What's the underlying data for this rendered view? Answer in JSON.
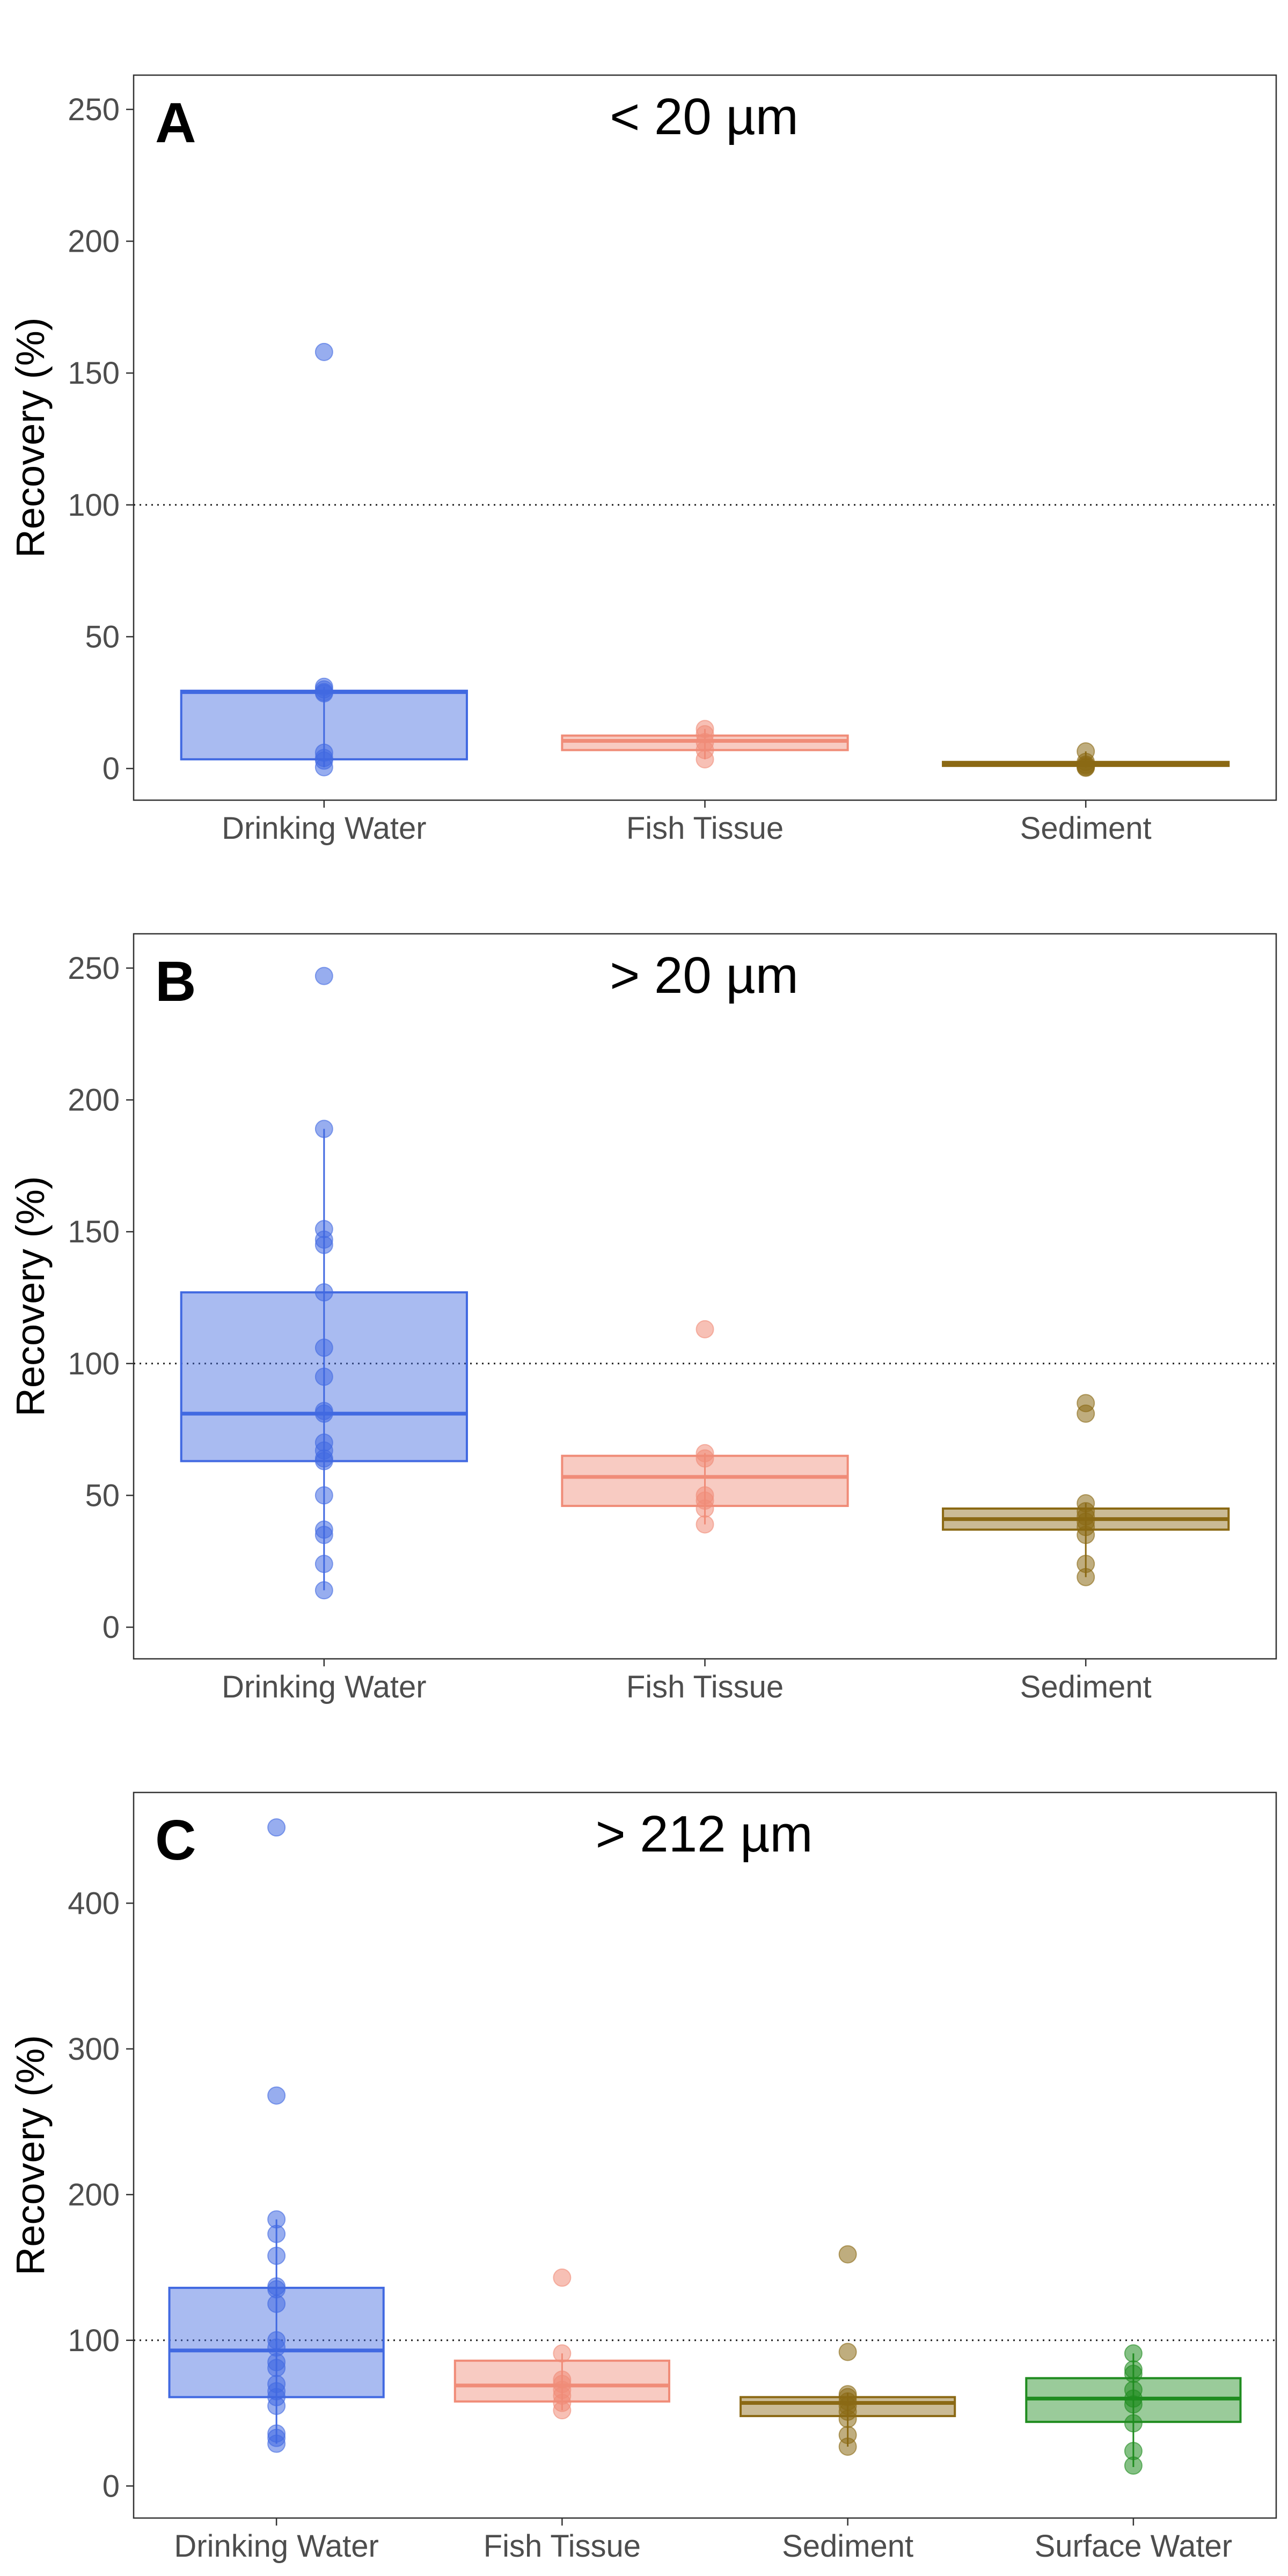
{
  "chart_data": [
    {
      "type": "box",
      "panel_label": "A",
      "title": "< 20 µm",
      "ylabel": "Recovery (%)",
      "xlabel": "",
      "ylim": [
        -12,
        263
      ],
      "yticks": [
        0,
        50,
        100,
        150,
        200,
        250
      ],
      "reference_line": 100,
      "grid": false,
      "legend": "none",
      "categories": [
        "Drinking Water",
        "Fish Tissue",
        "Sediment"
      ],
      "boxes": [
        {
          "category": "Drinking Water",
          "color": "#4169E1",
          "q1": 3.5,
          "median": 29,
          "q3": 29.5,
          "whisker_low": 0.5,
          "whisker_high": 31,
          "points": [
            158,
            31,
            30,
            29,
            28.5,
            6,
            4,
            3,
            0.5
          ]
        },
        {
          "category": "Fish Tissue",
          "color": "#F08C78",
          "q1": 7,
          "median": 10.5,
          "q3": 12.5,
          "whisker_low": 3.5,
          "whisker_high": 15,
          "points": [
            15,
            13,
            10,
            7,
            3.5
          ]
        },
        {
          "category": "Sediment",
          "color": "#8B6914",
          "q1": 1,
          "median": 1.8,
          "q3": 2.5,
          "whisker_low": 0.3,
          "whisker_high": 6.5,
          "points": [
            6.5,
            2.5,
            1.5,
            1,
            0.5,
            0.3
          ]
        }
      ]
    },
    {
      "type": "box",
      "panel_label": "B",
      "title": "> 20 µm",
      "ylabel": "Recovery (%)",
      "xlabel": "",
      "ylim": [
        -12,
        263
      ],
      "yticks": [
        0,
        50,
        100,
        150,
        200,
        250
      ],
      "reference_line": 100,
      "grid": false,
      "legend": "none",
      "categories": [
        "Drinking Water",
        "Fish Tissue",
        "Sediment"
      ],
      "boxes": [
        {
          "category": "Drinking Water",
          "color": "#4169E1",
          "q1": 63,
          "median": 81,
          "q3": 127,
          "whisker_low": 14,
          "whisker_high": 189,
          "points": [
            247,
            189,
            151,
            147,
            145,
            127,
            106,
            95,
            82,
            81,
            70,
            67,
            64,
            63,
            50,
            37,
            35,
            24,
            14
          ]
        },
        {
          "category": "Fish Tissue",
          "color": "#F08C78",
          "q1": 46,
          "median": 57,
          "q3": 65,
          "whisker_low": 39,
          "whisker_high": 66,
          "points": [
            113,
            66,
            64,
            50,
            48,
            45,
            39
          ]
        },
        {
          "category": "Sediment",
          "color": "#8B6914",
          "q1": 37,
          "median": 41,
          "q3": 45,
          "whisker_low": 19,
          "whisker_high": 47,
          "points": [
            85,
            81,
            47,
            44,
            42,
            40,
            38,
            35,
            24,
            19
          ]
        }
      ]
    },
    {
      "type": "box",
      "panel_label": "C",
      "title": "> 212 µm",
      "ylabel": "Recovery (%)",
      "xlabel": "",
      "ylim": [
        -22,
        476
      ],
      "yticks": [
        0,
        100,
        200,
        300,
        400
      ],
      "reference_line": 100,
      "grid": false,
      "legend": "none",
      "categories": [
        "Drinking Water",
        "Fish Tissue",
        "Sediment",
        "Surface Water"
      ],
      "boxes": [
        {
          "category": "Drinking Water",
          "color": "#4169E1",
          "q1": 61,
          "median": 93,
          "q3": 136,
          "whisker_low": 29,
          "whisker_high": 183,
          "points": [
            452,
            268,
            183,
            173,
            158,
            137,
            135,
            125,
            100,
            95,
            85,
            81,
            70,
            65,
            61,
            55,
            36,
            33,
            29
          ]
        },
        {
          "category": "Fish Tissue",
          "color": "#F08C78",
          "q1": 58,
          "median": 69,
          "q3": 86,
          "whisker_low": 52,
          "whisker_high": 91,
          "points": [
            143,
            91,
            73,
            70,
            66,
            62,
            57,
            52
          ]
        },
        {
          "category": "Sediment",
          "color": "#8B6914",
          "q1": 48,
          "median": 57,
          "q3": 61,
          "whisker_low": 27,
          "whisker_high": 64,
          "points": [
            159,
            92,
            63,
            61,
            58,
            55,
            51,
            46,
            35,
            27
          ]
        },
        {
          "category": "Surface Water",
          "color": "#1F8C1F",
          "q1": 44,
          "median": 60,
          "q3": 74,
          "whisker_low": 13,
          "whisker_high": 91,
          "points": [
            91,
            80,
            77,
            66,
            60,
            56,
            43,
            24,
            14
          ]
        }
      ]
    }
  ]
}
